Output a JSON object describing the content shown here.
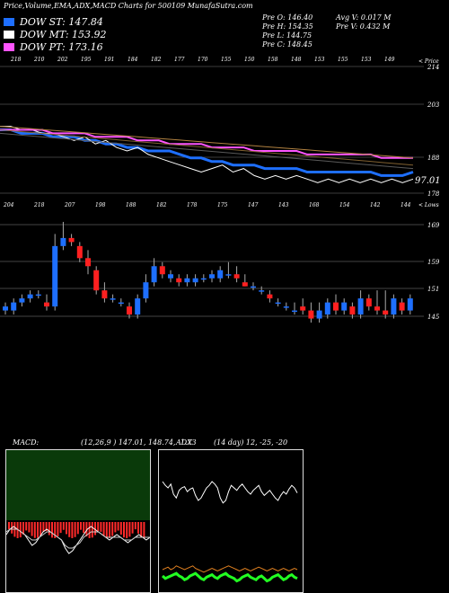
{
  "header": {
    "title": "Price,Volume,EMA,ADX,MACD Charts for 500109 MunafaSutra.com",
    "stats": {
      "open": "Pre   O: 146.40",
      "high": "Pre   H: 154.35",
      "low": "Pre   L: 144.75",
      "close": "Pre   C: 148.45",
      "avg_v": "Avg V: 0.017 M",
      "pre_v": "Pre   V: 0.432  M"
    }
  },
  "legend": [
    {
      "label": "DOW ST: 147.84",
      "color": "#1e6fff"
    },
    {
      "label": "DOW MT: 153.92",
      "color": "#ffffff"
    },
    {
      "label": "DOW PT: 173.16",
      "color": "#ff55ff"
    }
  ],
  "ema_panel": {
    "top_ticks": [
      "218",
      "210",
      "202",
      "195",
      "191",
      "184",
      "182",
      "177",
      "170",
      "155",
      "150",
      "158",
      "148",
      "153",
      "155",
      "153",
      "149"
    ],
    "y_ticks": [
      "214",
      "203",
      "188",
      "178"
    ],
    "last_value": "97.01",
    "corner_label": "< Price"
  },
  "candle_panel": {
    "top_ticks": [
      "204",
      "218",
      "207",
      "198",
      "188",
      "182",
      "178",
      "175",
      "147",
      "143",
      "168",
      "154",
      "142",
      "144"
    ],
    "y_ticks": [
      "169",
      "159",
      "151",
      "145"
    ],
    "corner_label": "< Lows"
  },
  "macd_panel": {
    "label": "MACD:",
    "values": "(12,26,9 ) 147.01, 148.74, -1.73"
  },
  "adx_panel": {
    "label": "ADX",
    "values": "(14  day) 12,  -25,  -20"
  },
  "colors": {
    "up": "#1e6fff",
    "down": "#ff2020",
    "ema_white": "#ffffff",
    "ema_pink": "#ff55ff",
    "ema_blue": "#1e6fff",
    "macd_bg": "#0a3a0a",
    "adx_green": "#22ff22",
    "adx_orange": "#e08020"
  },
  "chart_data": [
    {
      "type": "line",
      "title": "EMA",
      "ylim": [
        178,
        214
      ],
      "series": [
        {
          "name": "DOW ST",
          "values": [
            196,
            196,
            195,
            195,
            195,
            194,
            194,
            194,
            193,
            193,
            192,
            192,
            191,
            191,
            190,
            190,
            190,
            189,
            188,
            188,
            187,
            187,
            186,
            186,
            186,
            185,
            185,
            185,
            185,
            184,
            184,
            184,
            184,
            184,
            184,
            184,
            183,
            183,
            183,
            184
          ]
        },
        {
          "name": "DOW MT",
          "values": [
            197,
            197,
            196,
            196,
            195,
            195,
            194,
            193,
            194,
            192,
            193,
            191,
            190,
            191,
            189,
            188,
            187,
            186,
            185,
            184,
            185,
            186,
            184,
            185,
            183,
            182,
            183,
            182,
            183,
            182,
            181,
            182,
            181,
            182,
            181,
            182,
            181,
            182,
            181,
            182
          ]
        },
        {
          "name": "DOW PT",
          "values": [
            196,
            196,
            196,
            196,
            196,
            195,
            195,
            195,
            195,
            194,
            194,
            194,
            194,
            193,
            193,
            193,
            192,
            192,
            192,
            192,
            191,
            191,
            191,
            191,
            190,
            190,
            190,
            190,
            190,
            189,
            189,
            189,
            189,
            189,
            189,
            189,
            188,
            188,
            188,
            188
          ]
        }
      ]
    },
    {
      "type": "candlestick",
      "ylim": [
        143,
        172
      ],
      "candles": [
        [
          148,
          150,
          147,
          149
        ],
        [
          148,
          151,
          147,
          150
        ],
        [
          150,
          152,
          149,
          151
        ],
        [
          151,
          153,
          150,
          152
        ],
        [
          152,
          153,
          151,
          152
        ],
        [
          150,
          152,
          148,
          149
        ],
        [
          149,
          167,
          148,
          164
        ],
        [
          164,
          170,
          163,
          166
        ],
        [
          166,
          167,
          164,
          165
        ],
        [
          164,
          165,
          160,
          161
        ],
        [
          161,
          163,
          157,
          159
        ],
        [
          158,
          159,
          152,
          153
        ],
        [
          153,
          155,
          150,
          151
        ],
        [
          151,
          152,
          150,
          151
        ],
        [
          150,
          151,
          149,
          150
        ],
        [
          149,
          150,
          146,
          147
        ],
        [
          147,
          152,
          146,
          151
        ],
        [
          151,
          157,
          150,
          155
        ],
        [
          155,
          161,
          154,
          159
        ],
        [
          159,
          160,
          156,
          157
        ],
        [
          156,
          158,
          155,
          157
        ],
        [
          156,
          157,
          154,
          155
        ],
        [
          155,
          157,
          154,
          156
        ],
        [
          155,
          157,
          154,
          156
        ],
        [
          156,
          157,
          155,
          156
        ],
        [
          156,
          158,
          155,
          157
        ],
        [
          156,
          159,
          155,
          158
        ],
        [
          157,
          160,
          156,
          157
        ],
        [
          157,
          159,
          155,
          156
        ],
        [
          155,
          157,
          154,
          154
        ],
        [
          154,
          155,
          153,
          154
        ],
        [
          153,
          154,
          152,
          153
        ],
        [
          152,
          153,
          150,
          151
        ],
        [
          150,
          151,
          149,
          150
        ],
        [
          149,
          150,
          148,
          149
        ],
        [
          148,
          150,
          147,
          148
        ],
        [
          149,
          151,
          147,
          148
        ],
        [
          148,
          150,
          145,
          146
        ],
        [
          146,
          150,
          145,
          148
        ],
        [
          147,
          151,
          146,
          150
        ],
        [
          150,
          152,
          147,
          148
        ],
        [
          148,
          151,
          147,
          150
        ],
        [
          149,
          150,
          146,
          147
        ],
        [
          147,
          153,
          146,
          151
        ],
        [
          151,
          152,
          148,
          149
        ],
        [
          149,
          153,
          147,
          148
        ],
        [
          148,
          153,
          146,
          147
        ],
        [
          147,
          152,
          146,
          151
        ],
        [
          150,
          151,
          147,
          148
        ],
        [
          148,
          152,
          147,
          151
        ]
      ]
    },
    {
      "type": "line",
      "title": "MACD",
      "series": [
        {
          "name": "MACD",
          "values": [
            2,
            4,
            5,
            4,
            3,
            2,
            0,
            -2,
            -1,
            1,
            3,
            4,
            3,
            2,
            1,
            0,
            -3,
            -5,
            -4,
            -2,
            0,
            2,
            4,
            5,
            4,
            3,
            2,
            1,
            0,
            1,
            2,
            1,
            0,
            -1,
            0,
            1,
            2,
            1,
            0,
            1
          ]
        },
        {
          "name": "Signal",
          "values": [
            3,
            4,
            4,
            4,
            3,
            2,
            1,
            0,
            0,
            1,
            2,
            3,
            3,
            2,
            1,
            0,
            -2,
            -3,
            -3,
            -2,
            -1,
            1,
            2,
            3,
            3,
            3,
            2,
            1,
            1,
            1,
            1,
            1,
            0,
            0,
            0,
            1,
            1,
            1,
            1,
            1
          ]
        }
      ]
    },
    {
      "type": "line",
      "title": "ADX",
      "series": [
        {
          "name": "+DI",
          "values": [
            25,
            28,
            30,
            27,
            35,
            38,
            32,
            30,
            29,
            33,
            31,
            30,
            36,
            40,
            38,
            34,
            30,
            28,
            25,
            27,
            30,
            38,
            42,
            40,
            33,
            28,
            30,
            32,
            29,
            27,
            30,
            33,
            35,
            32,
            30,
            28,
            33,
            36,
            34,
            32,
            35,
            38,
            40,
            36,
            33,
            35,
            31,
            28,
            30,
            34
          ]
        },
        {
          "name": "ADX",
          "values": [
            95,
            94,
            93,
            95,
            94,
            92,
            93,
            94,
            95,
            94,
            93,
            92,
            94,
            95,
            96,
            97,
            96,
            95,
            94,
            95,
            96,
            95,
            94,
            93,
            92,
            93,
            94,
            95,
            96,
            95,
            94,
            95,
            96,
            95,
            94,
            93,
            94,
            95,
            96,
            95,
            94,
            95,
            96,
            95,
            94,
            95,
            96,
            95,
            94,
            95
          ]
        },
        {
          "name": "-DI",
          "values": [
            100,
            102,
            101,
            100,
            99,
            98,
            100,
            101,
            103,
            102,
            100,
            99,
            98,
            100,
            102,
            103,
            101,
            100,
            99,
            101,
            102,
            100,
            99,
            98,
            100,
            101,
            102,
            104,
            103,
            101,
            100,
            99,
            101,
            102,
            103,
            101,
            100,
            102,
            104,
            103,
            101,
            100,
            99,
            101,
            103,
            102,
            100,
            99,
            101,
            102
          ]
        }
      ]
    }
  ]
}
